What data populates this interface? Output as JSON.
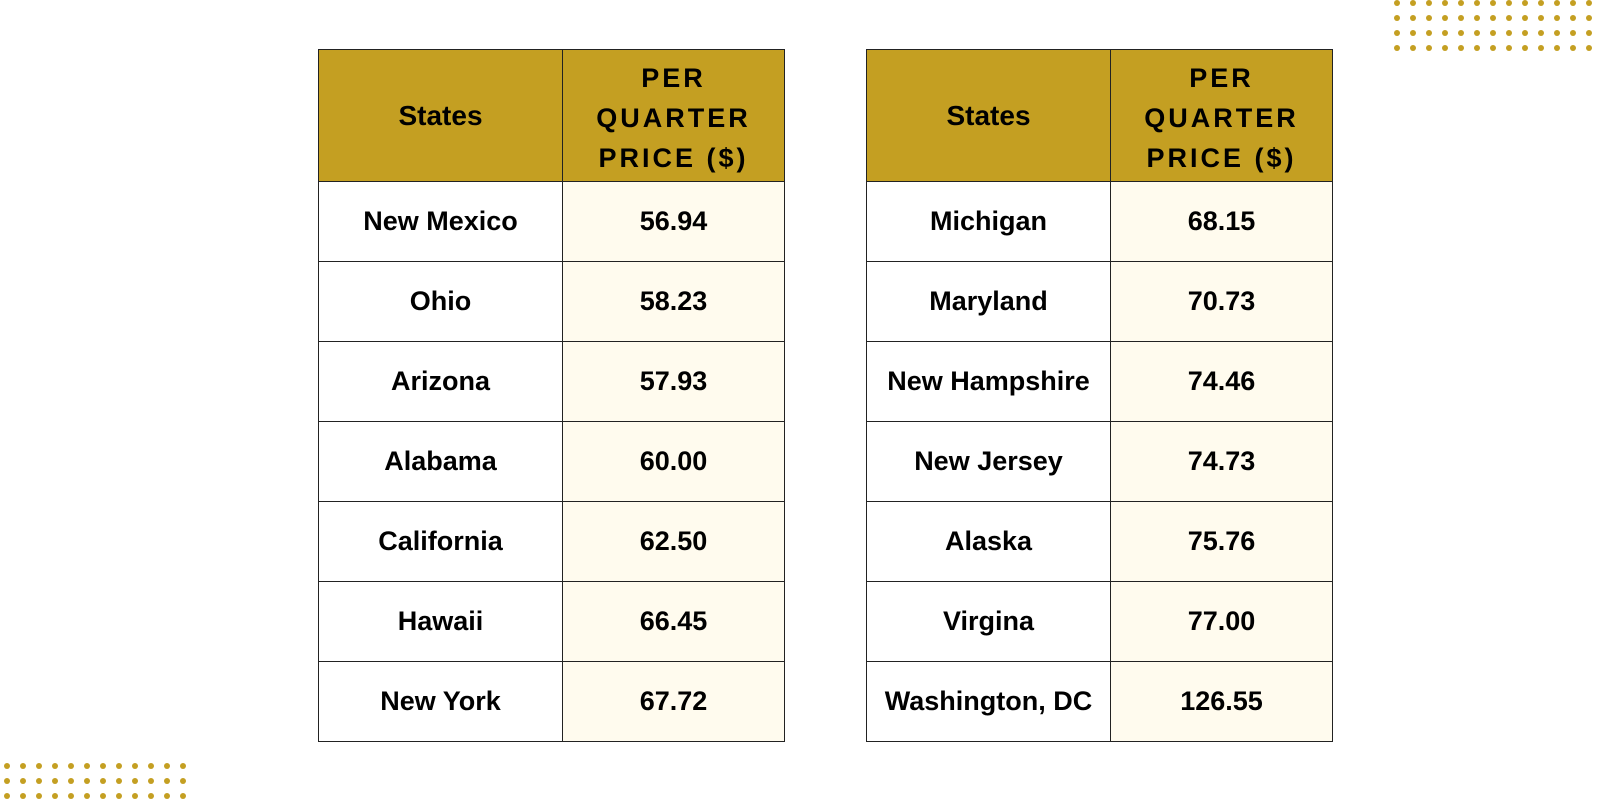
{
  "decoration": {
    "accent_color": "#c49f22",
    "price_cell_bg": "#fffbee"
  },
  "tables": [
    {
      "header": {
        "state": "States",
        "price": "PER QUARTER PRICE ($)"
      },
      "rows": [
        {
          "state": "New Mexico",
          "price": "56.94"
        },
        {
          "state": "Ohio",
          "price": "58.23"
        },
        {
          "state": "Arizona",
          "price": "57.93"
        },
        {
          "state": "Alabama",
          "price": "60.00"
        },
        {
          "state": "California",
          "price": "62.50"
        },
        {
          "state": "Hawaii",
          "price": "66.45"
        },
        {
          "state": "New York",
          "price": "67.72"
        }
      ]
    },
    {
      "header": {
        "state": "States",
        "price": "PER QUARTER PRICE ($)"
      },
      "rows": [
        {
          "state": "Michigan",
          "price": "68.15"
        },
        {
          "state": "Maryland",
          "price": "70.73"
        },
        {
          "state": "New Hampshire",
          "price": "74.46"
        },
        {
          "state": "New Jersey",
          "price": "74.73"
        },
        {
          "state": "Alaska",
          "price": "75.76"
        },
        {
          "state": "Virgina",
          "price": "77.00"
        },
        {
          "state": "Washington, DC",
          "price": "126.55"
        }
      ]
    }
  ]
}
